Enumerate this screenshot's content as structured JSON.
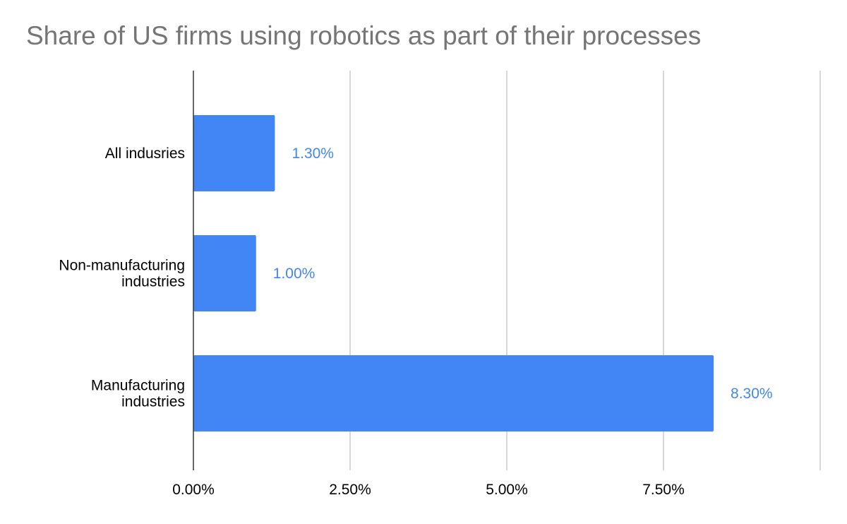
{
  "chart_data": {
    "type": "bar",
    "orientation": "horizontal",
    "title": "Share of US firms using robotics as part of their processes",
    "categories": [
      [
        "All indusries"
      ],
      [
        "Non-manufacturing",
        "industries"
      ],
      [
        "Manufacturing",
        "industries"
      ]
    ],
    "values": [
      1.3,
      1.0,
      8.3
    ],
    "data_labels": [
      "1.30%",
      "1.00%",
      "8.30%"
    ],
    "xlim": [
      0,
      10
    ],
    "x_ticks": [
      0,
      2.5,
      5,
      7.5,
      10
    ],
    "x_tick_labels": [
      "0.00%",
      "2.50%",
      "5.00%",
      "7.50%",
      ""
    ],
    "grid": true,
    "legend": "none",
    "colors": {
      "bar": "#4285f4",
      "data_label": "#4285f4",
      "grid": "#cccccc",
      "axis": "#333333"
    }
  }
}
